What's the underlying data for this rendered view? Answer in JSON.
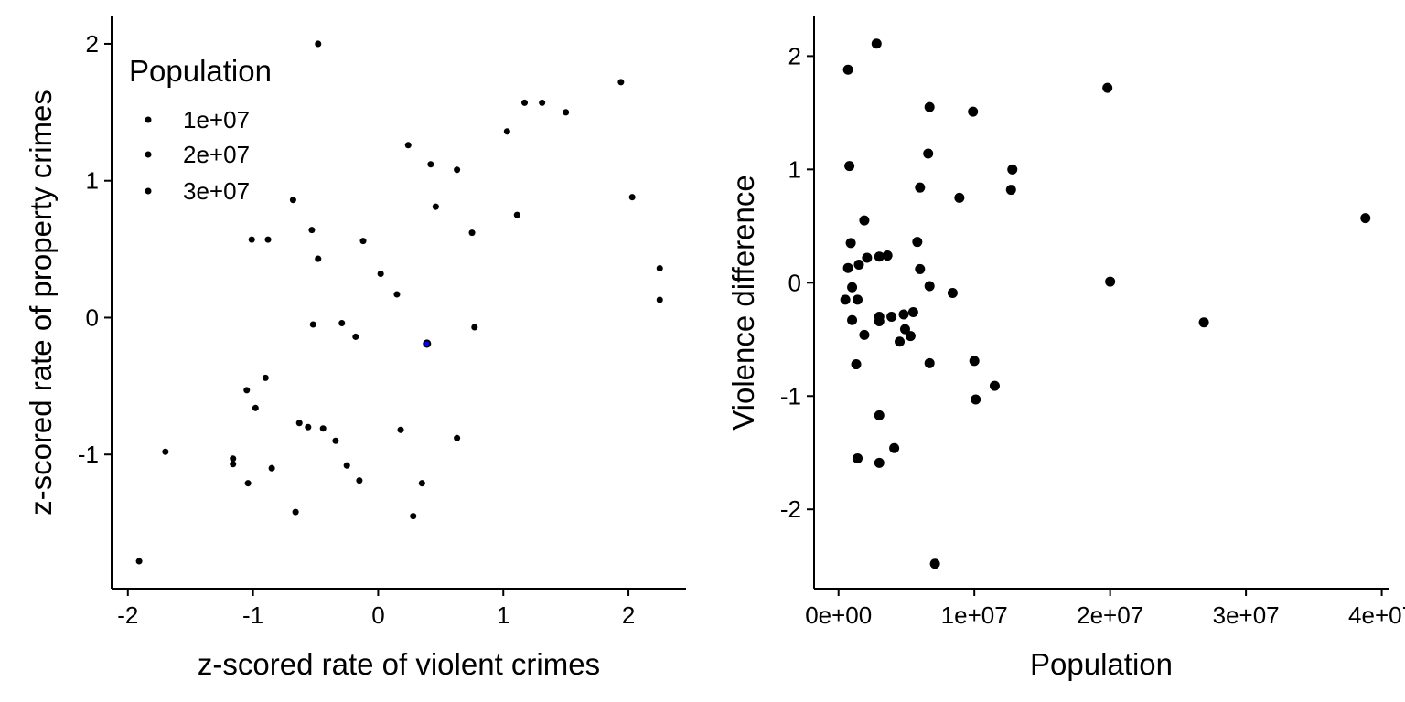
{
  "chart_data": [
    {
      "type": "scatter",
      "xlabel": "z-scored rate of violent crimes",
      "ylabel": "z-scored rate of property crimes",
      "xlim": [
        -2.13,
        2.46
      ],
      "ylim": [
        -1.98,
        2.2
      ],
      "xticks": [
        -2,
        -1,
        0,
        1,
        2
      ],
      "yticks": [
        -1,
        0,
        1,
        2
      ],
      "xtick_labels": [
        "-2",
        "-1",
        "0",
        "1",
        "2"
      ],
      "ytick_labels": [
        "-1",
        "0",
        "1",
        "2"
      ],
      "point_color": "#000000",
      "highlight_color": "#0000ff",
      "size_legend": {
        "title": "Population",
        "entries": [
          {
            "label": "1e+07",
            "value": 10000000
          },
          {
            "label": "2e+07",
            "value": 20000000
          },
          {
            "label": "3e+07",
            "value": 30000000
          }
        ]
      },
      "points": [
        {
          "x": -0.48,
          "y": 2.0,
          "pop": 18000000
        },
        {
          "x": 1.94,
          "y": 1.72,
          "pop": 6000000
        },
        {
          "x": 1.17,
          "y": 1.57,
          "pop": 12000000
        },
        {
          "x": 1.31,
          "y": 1.57,
          "pop": 12000000
        },
        {
          "x": 1.5,
          "y": 1.5,
          "pop": 28000000
        },
        {
          "x": 1.03,
          "y": 1.36,
          "pop": 9000000
        },
        {
          "x": 0.24,
          "y": 1.26,
          "pop": 16000000
        },
        {
          "x": 0.42,
          "y": 1.12,
          "pop": 14000000
        },
        {
          "x": 0.63,
          "y": 1.08,
          "pop": 11000000
        },
        {
          "x": 2.03,
          "y": 0.88,
          "pop": 13000000
        },
        {
          "x": -0.68,
          "y": 0.86,
          "pop": 5000000
        },
        {
          "x": 0.46,
          "y": 0.81,
          "pop": 35000000
        },
        {
          "x": 1.11,
          "y": 0.75,
          "pop": 4000000
        },
        {
          "x": -0.53,
          "y": 0.64,
          "pop": 10000000
        },
        {
          "x": 0.75,
          "y": 0.62,
          "pop": 13000000
        },
        {
          "x": -1.01,
          "y": 0.57,
          "pop": 10000000
        },
        {
          "x": -0.88,
          "y": 0.57,
          "pop": 11000000
        },
        {
          "x": -0.12,
          "y": 0.56,
          "pop": 18000000
        },
        {
          "x": -0.48,
          "y": 0.43,
          "pop": 18000000
        },
        {
          "x": 2.25,
          "y": 0.36,
          "pop": 2000000
        },
        {
          "x": 0.02,
          "y": 0.32,
          "pop": 9000000
        },
        {
          "x": 0.15,
          "y": 0.17,
          "pop": 13000000
        },
        {
          "x": 2.25,
          "y": 0.13,
          "pop": 7000000
        },
        {
          "x": -0.52,
          "y": -0.05,
          "pop": 6000000
        },
        {
          "x": -0.29,
          "y": -0.04,
          "pop": 11000000
        },
        {
          "x": 0.77,
          "y": -0.07,
          "pop": 12000000
        },
        {
          "x": -0.18,
          "y": -0.14,
          "pop": 3000000
        },
        {
          "x": 0.39,
          "y": -0.19,
          "pop": 38000000,
          "highlight": true
        },
        {
          "x": -0.9,
          "y": -0.44,
          "pop": 11000000
        },
        {
          "x": -1.05,
          "y": -0.53,
          "pop": 11000000
        },
        {
          "x": -0.98,
          "y": -0.66,
          "pop": 3000000
        },
        {
          "x": -0.63,
          "y": -0.77,
          "pop": 4000000
        },
        {
          "x": -0.56,
          "y": -0.8,
          "pop": 9000000
        },
        {
          "x": -0.44,
          "y": -0.81,
          "pop": 12000000
        },
        {
          "x": 0.18,
          "y": -0.82,
          "pop": 20000000
        },
        {
          "x": -0.34,
          "y": -0.9,
          "pop": 6000000
        },
        {
          "x": 0.63,
          "y": -0.88,
          "pop": 16000000
        },
        {
          "x": -1.7,
          "y": -0.98,
          "pop": 5000000
        },
        {
          "x": -1.16,
          "y": -1.03,
          "pop": 5000000
        },
        {
          "x": -1.16,
          "y": -1.07,
          "pop": 16000000
        },
        {
          "x": -0.25,
          "y": -1.08,
          "pop": 20000000
        },
        {
          "x": -0.85,
          "y": -1.1,
          "pop": 10000000
        },
        {
          "x": -1.04,
          "y": -1.21,
          "pop": 6000000
        },
        {
          "x": -0.15,
          "y": -1.19,
          "pop": 3000000
        },
        {
          "x": 0.35,
          "y": -1.21,
          "pop": 12000000
        },
        {
          "x": -0.66,
          "y": -1.42,
          "pop": 16000000
        },
        {
          "x": 0.28,
          "y": -1.45,
          "pop": 24000000
        },
        {
          "x": -1.91,
          "y": -1.78,
          "pop": 2000000
        }
      ]
    },
    {
      "type": "scatter",
      "xlabel": "Population",
      "ylabel": "Violence difference",
      "xlim": [
        -1800000,
        40500000
      ],
      "ylim": [
        -2.7,
        2.35
      ],
      "xticks": [
        0,
        10000000,
        20000000,
        30000000,
        40000000
      ],
      "yticks": [
        -2,
        -1,
        0,
        1,
        2
      ],
      "xtick_labels": [
        "0e+00",
        "1e+07",
        "2e+07",
        "3e+07",
        "4e+07"
      ],
      "ytick_labels": [
        "-2",
        "-1",
        "0",
        "1",
        "2"
      ],
      "point_color": "#000000",
      "points": [
        {
          "x": 2800000,
          "y": 2.11
        },
        {
          "x": 700000,
          "y": 1.88
        },
        {
          "x": 19800000,
          "y": 1.72
        },
        {
          "x": 6700000,
          "y": 1.55
        },
        {
          "x": 9900000,
          "y": 1.51
        },
        {
          "x": 6600000,
          "y": 1.14
        },
        {
          "x": 800000,
          "y": 1.03
        },
        {
          "x": 12800000,
          "y": 1.0
        },
        {
          "x": 6000000,
          "y": 0.84
        },
        {
          "x": 12700000,
          "y": 0.82
        },
        {
          "x": 8900000,
          "y": 0.75
        },
        {
          "x": 38800000,
          "y": 0.57
        },
        {
          "x": 1900000,
          "y": 0.55
        },
        {
          "x": 900000,
          "y": 0.35
        },
        {
          "x": 5800000,
          "y": 0.36
        },
        {
          "x": 3600000,
          "y": 0.24
        },
        {
          "x": 3000000,
          "y": 0.23
        },
        {
          "x": 2100000,
          "y": 0.22
        },
        {
          "x": 1500000,
          "y": 0.16
        },
        {
          "x": 700000,
          "y": 0.13
        },
        {
          "x": 6000000,
          "y": 0.12
        },
        {
          "x": 20000000,
          "y": 0.01
        },
        {
          "x": 1000000,
          "y": -0.04
        },
        {
          "x": 6700000,
          "y": -0.03
        },
        {
          "x": 8400000,
          "y": -0.09
        },
        {
          "x": 500000,
          "y": -0.15
        },
        {
          "x": 1400000,
          "y": -0.15
        },
        {
          "x": 5500000,
          "y": -0.26
        },
        {
          "x": 4800000,
          "y": -0.28
        },
        {
          "x": 3900000,
          "y": -0.3
        },
        {
          "x": 3000000,
          "y": -0.3
        },
        {
          "x": 1000000,
          "y": -0.33
        },
        {
          "x": 3000000,
          "y": -0.34
        },
        {
          "x": 26900000,
          "y": -0.35
        },
        {
          "x": 4900000,
          "y": -0.41
        },
        {
          "x": 1900000,
          "y": -0.46
        },
        {
          "x": 5300000,
          "y": -0.47
        },
        {
          "x": 4500000,
          "y": -0.52
        },
        {
          "x": 10000000,
          "y": -0.69
        },
        {
          "x": 1300000,
          "y": -0.72
        },
        {
          "x": 6700000,
          "y": -0.71
        },
        {
          "x": 11500000,
          "y": -0.91
        },
        {
          "x": 10100000,
          "y": -1.03
        },
        {
          "x": 3000000,
          "y": -1.17
        },
        {
          "x": 4100000,
          "y": -1.46
        },
        {
          "x": 1400000,
          "y": -1.55
        },
        {
          "x": 3000000,
          "y": -1.59
        },
        {
          "x": 7100000,
          "y": -2.48
        }
      ]
    }
  ]
}
